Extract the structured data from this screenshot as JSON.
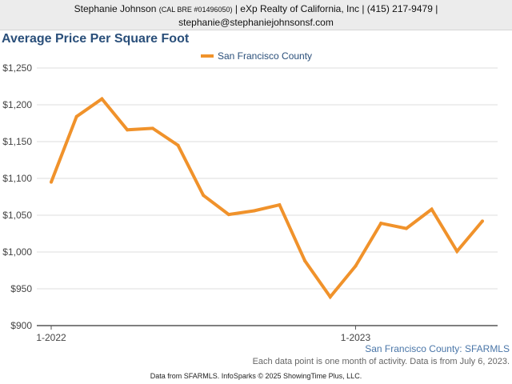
{
  "banner": {
    "agent_name": "Stephanie Johnson",
    "license": "(CAL BRE #01496050)",
    "company_phone": "| eXp Realty of California, Inc | (415) 217-9479 |",
    "email": "stephanie@stephaniejohnsonsf.com"
  },
  "chart_data": {
    "type": "line",
    "title": "Average Price Per Square Foot",
    "xlabel": "",
    "ylabel": "",
    "ylim": [
      900,
      1250
    ],
    "yticks": [
      900,
      950,
      1000,
      1050,
      1100,
      1150,
      1200,
      1250
    ],
    "ytick_labels": [
      "$900",
      "$950",
      "$1,000",
      "$1,050",
      "$1,100",
      "$1,150",
      "$1,200",
      "$1,250"
    ],
    "x": [
      "2022-01",
      "2022-02",
      "2022-03",
      "2022-04",
      "2022-05",
      "2022-06",
      "2022-07",
      "2022-08",
      "2022-09",
      "2022-10",
      "2022-11",
      "2022-12",
      "2023-01",
      "2023-02",
      "2023-03",
      "2023-04",
      "2023-05",
      "2023-06"
    ],
    "xticks": [
      {
        "x": "2022-01",
        "label": "1-2022"
      },
      {
        "x": "2023-01",
        "label": "1-2023"
      }
    ],
    "legend_position": "top-center",
    "grid": "horizontal",
    "series": [
      {
        "name": "San Francisco County",
        "color": "#f0922b",
        "values": [
          1095,
          1184,
          1208,
          1166,
          1168,
          1145,
          1077,
          1051,
          1056,
          1064,
          988,
          939,
          981,
          1039,
          1032,
          1058,
          1001,
          1042
        ]
      }
    ]
  },
  "source_label": "San Francisco County: SFARMLS",
  "note": "Each data point is one month of activity. Data is from July 6, 2023.",
  "footer": "Data from SFARMLS. InfoSparks © 2025 ShowingTime Plus, LLC."
}
